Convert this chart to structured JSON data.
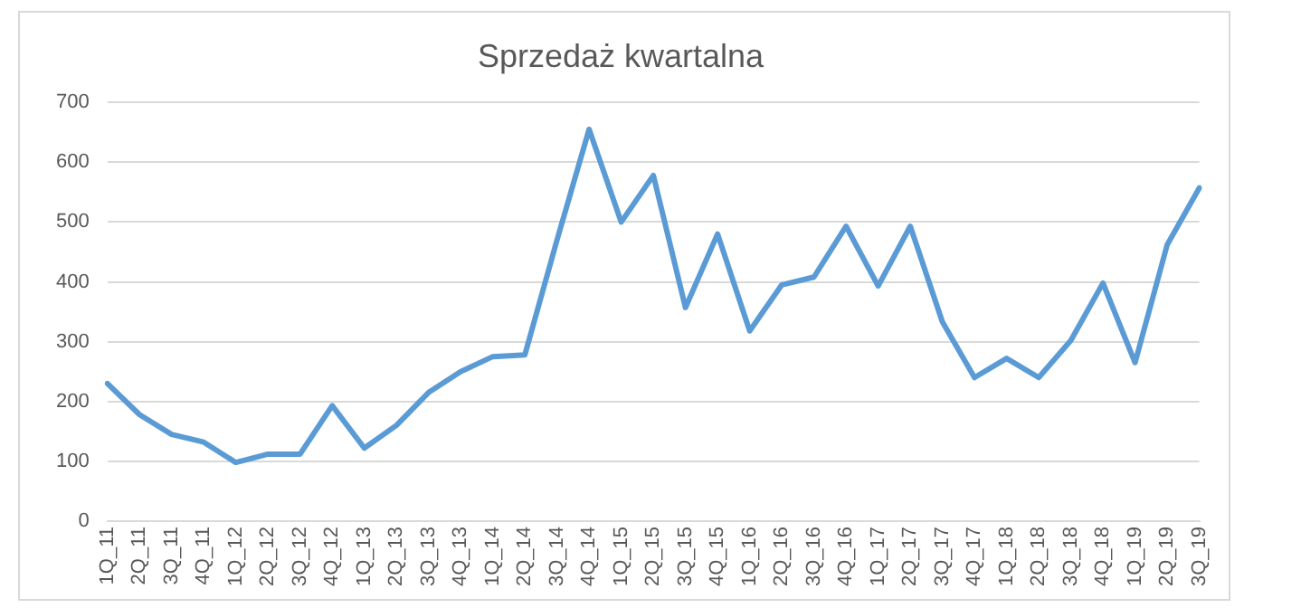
{
  "chart_data": {
    "type": "line",
    "title": "Sprzedaż kwartalna",
    "categories": [
      "1Q_11",
      "2Q_11",
      "3Q_11",
      "4Q_11",
      "1Q_12",
      "2Q_12",
      "3Q_12",
      "4Q_12",
      "1Q_13",
      "2Q_13",
      "3Q_13",
      "4Q_13",
      "1Q_14",
      "2Q_14",
      "3Q_14",
      "4Q_14",
      "1Q_15",
      "2Q_15",
      "3Q_15",
      "4Q_15",
      "1Q_16",
      "2Q_16",
      "3Q_16",
      "4Q_16",
      "1Q_17",
      "2Q_17",
      "3Q_17",
      "4Q_17",
      "1Q_18",
      "2Q_18",
      "3Q_18",
      "4Q_18",
      "1Q_19",
      "2Q_19",
      "3Q_19"
    ],
    "series": [
      {
        "color": "#5b9bd5",
        "values": [
          230,
          178,
          145,
          132,
          98,
          112,
          112,
          193,
          122,
          160,
          215,
          250,
          275,
          278,
          470,
          655,
          500,
          578,
          357,
          480,
          318,
          395,
          408,
          493,
          393,
          493,
          333,
          240,
          272,
          240,
          302,
          398,
          265,
          462,
          557
        ]
      }
    ],
    "ylim": [
      0,
      700
    ],
    "yticks": [
      0,
      100,
      200,
      300,
      400,
      500,
      600,
      700
    ],
    "grid": "y",
    "legend": false,
    "marker": "none",
    "line_style": "solid"
  }
}
